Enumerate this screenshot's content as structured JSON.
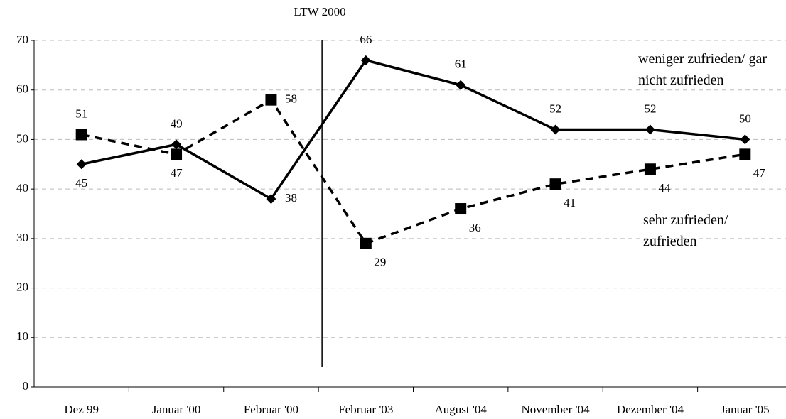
{
  "chart_data": {
    "type": "line",
    "annotations": [
      {
        "text": "LTW 2000"
      }
    ],
    "categories": [
      "Dez 99",
      "Januar '00",
      "Februar '00",
      "Februar '03",
      "August '04",
      "November '04",
      "Dezember '04",
      "Januar '05"
    ],
    "series": [
      {
        "name": "weniger zufrieden/ gar nicht zufrieden",
        "color": "#000000",
        "dash": false,
        "marker": "diamond",
        "values": [
          45,
          49,
          38,
          66,
          61,
          52,
          52,
          50
        ]
      },
      {
        "name": "sehr zufrieden/ zufrieden",
        "color": "#000000",
        "dash": true,
        "marker": "square",
        "values": [
          51,
          47,
          58,
          29,
          36,
          41,
          44,
          47
        ]
      }
    ],
    "ylim": [
      0,
      70
    ],
    "yticks": [
      0,
      10,
      20,
      30,
      40,
      50,
      60,
      70
    ],
    "grid": true
  }
}
